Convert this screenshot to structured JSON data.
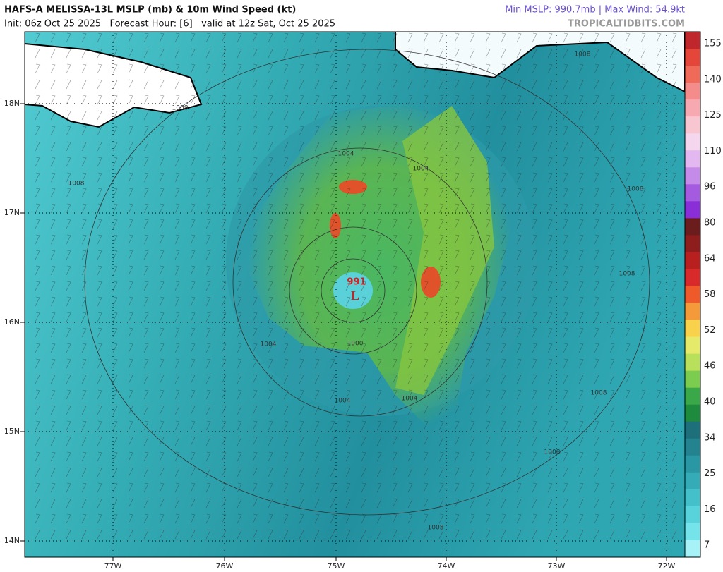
{
  "header": {
    "title": "HAFS-A MELISSA-13L MSLP (mb) & 10m Wind Speed (kt)",
    "init": "Init: 06z Oct 25 2025   Forecast Hour: [6]   valid at 12z Sat, Oct 25 2025",
    "stats": "Min MSLP: 990.7mb | Max Wind: 54.9kt",
    "site": "TROPICALTIDBITS.COM"
  },
  "map": {
    "lat_labels": [
      "18N",
      "17N",
      "16N",
      "15N",
      "14N"
    ],
    "lon_labels": [
      "77W",
      "76W",
      "75W",
      "74W",
      "73W",
      "72W"
    ],
    "isobar_labels": [
      "1008",
      "1008",
      "1008",
      "1008",
      "1008",
      "1008",
      "1008",
      "1008",
      "1004",
      "1004",
      "1004",
      "1004",
      "1004",
      "1000"
    ],
    "center": {
      "pressure": "991",
      "symbol": "L"
    }
  },
  "colorbar": {
    "labels": [
      "155",
      "140",
      "125",
      "110",
      "96",
      "80",
      "64",
      "58",
      "52",
      "46",
      "40",
      "34",
      "25",
      "16",
      "7"
    ]
  }
}
